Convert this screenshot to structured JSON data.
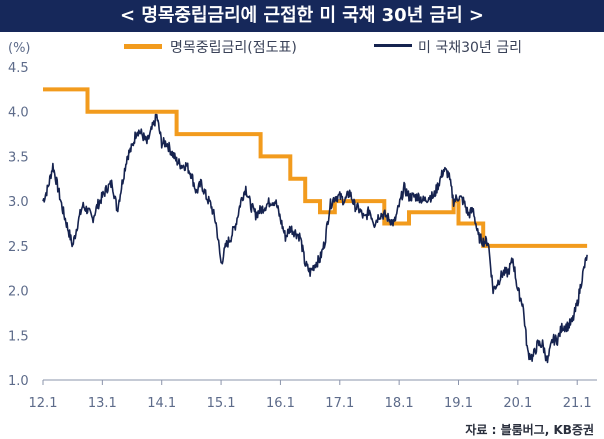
{
  "title": "< 명목중립금리에 근접한 미 국채 30년 금리 >",
  "source": "자료 : 블룸버그, KB증권",
  "colors": {
    "title_bg": "#16285a",
    "neutral": "#f29b1d",
    "yield": "#16234f",
    "axis_text": "#5d6b8a"
  },
  "chart_data": {
    "type": "line",
    "ylabel": "(%)",
    "ylim": [
      1.0,
      4.5
    ],
    "yticks": [
      "1.0",
      "1.5",
      "2.0",
      "2.5",
      "3.0",
      "3.5",
      "4.0",
      "4.5"
    ],
    "xlim": [
      "2012-01",
      "2021-05"
    ],
    "xticks": [
      "12.1",
      "13.1",
      "14.1",
      "15.1",
      "16.1",
      "17.1",
      "18.1",
      "19.1",
      "20.1",
      "21.1"
    ],
    "legend_position": "top",
    "series": [
      {
        "name": "명목중립금리(점도표)",
        "style": "step",
        "points": [
          [
            "2012-01",
            4.25
          ],
          [
            "2012-10",
            4.0
          ],
          [
            "2014-04",
            3.75
          ],
          [
            "2015-09",
            3.5
          ],
          [
            "2016-03",
            3.25
          ],
          [
            "2016-06",
            3.0
          ],
          [
            "2016-09",
            2.875
          ],
          [
            "2016-12",
            3.0
          ],
          [
            "2017-10",
            2.75
          ],
          [
            "2018-03",
            2.875
          ],
          [
            "2018-12",
            3.0
          ],
          [
            "2019-01",
            2.75
          ],
          [
            "2019-06",
            2.5
          ],
          [
            "2021-03",
            2.5
          ]
        ]
      },
      {
        "name": "미 국채30년 금리",
        "style": "line",
        "points": [
          [
            "2012-01",
            3.0
          ],
          [
            "2012-02",
            3.15
          ],
          [
            "2012-03",
            3.4
          ],
          [
            "2012-04",
            3.15
          ],
          [
            "2012-05",
            2.9
          ],
          [
            "2012-06",
            2.7
          ],
          [
            "2012-07",
            2.5
          ],
          [
            "2012-08",
            2.75
          ],
          [
            "2012-09",
            2.95
          ],
          [
            "2012-10",
            2.9
          ],
          [
            "2012-11",
            2.8
          ],
          [
            "2012-12",
            2.95
          ],
          [
            "2013-01",
            3.05
          ],
          [
            "2013-02",
            3.15
          ],
          [
            "2013-03",
            3.2
          ],
          [
            "2013-04",
            2.9
          ],
          [
            "2013-05",
            3.2
          ],
          [
            "2013-06",
            3.5
          ],
          [
            "2013-07",
            3.6
          ],
          [
            "2013-08",
            3.8
          ],
          [
            "2013-09",
            3.75
          ],
          [
            "2013-10",
            3.65
          ],
          [
            "2013-11",
            3.8
          ],
          [
            "2013-12",
            3.95
          ],
          [
            "2014-01",
            3.65
          ],
          [
            "2014-02",
            3.65
          ],
          [
            "2014-03",
            3.55
          ],
          [
            "2014-04",
            3.45
          ],
          [
            "2014-05",
            3.4
          ],
          [
            "2014-06",
            3.4
          ],
          [
            "2014-07",
            3.3
          ],
          [
            "2014-08",
            3.1
          ],
          [
            "2014-09",
            3.2
          ],
          [
            "2014-10",
            3.05
          ],
          [
            "2014-11",
            2.95
          ],
          [
            "2014-12",
            2.75
          ],
          [
            "2015-01",
            2.3
          ],
          [
            "2015-02",
            2.5
          ],
          [
            "2015-03",
            2.6
          ],
          [
            "2015-04",
            2.75
          ],
          [
            "2015-05",
            3.0
          ],
          [
            "2015-06",
            3.15
          ],
          [
            "2015-07",
            2.95
          ],
          [
            "2015-08",
            2.85
          ],
          [
            "2015-09",
            2.9
          ],
          [
            "2015-10",
            2.95
          ],
          [
            "2015-11",
            3.0
          ],
          [
            "2015-12",
            3.0
          ],
          [
            "2016-01",
            2.8
          ],
          [
            "2016-02",
            2.6
          ],
          [
            "2016-03",
            2.7
          ],
          [
            "2016-04",
            2.65
          ],
          [
            "2016-05",
            2.6
          ],
          [
            "2016-06",
            2.3
          ],
          [
            "2016-07",
            2.2
          ],
          [
            "2016-08",
            2.3
          ],
          [
            "2016-09",
            2.35
          ],
          [
            "2016-10",
            2.55
          ],
          [
            "2016-11",
            2.95
          ],
          [
            "2016-12",
            3.05
          ],
          [
            "2017-01",
            3.05
          ],
          [
            "2017-02",
            3.0
          ],
          [
            "2017-03",
            3.1
          ],
          [
            "2017-04",
            2.95
          ],
          [
            "2017-05",
            2.9
          ],
          [
            "2017-06",
            2.8
          ],
          [
            "2017-07",
            2.9
          ],
          [
            "2017-08",
            2.75
          ],
          [
            "2017-09",
            2.85
          ],
          [
            "2017-10",
            2.85
          ],
          [
            "2017-11",
            2.8
          ],
          [
            "2017-12",
            2.75
          ],
          [
            "2018-01",
            2.95
          ],
          [
            "2018-02",
            3.15
          ],
          [
            "2018-03",
            3.05
          ],
          [
            "2018-04",
            3.05
          ],
          [
            "2018-05",
            3.05
          ],
          [
            "2018-06",
            3.0
          ],
          [
            "2018-07",
            3.05
          ],
          [
            "2018-08",
            3.05
          ],
          [
            "2018-09",
            3.2
          ],
          [
            "2018-10",
            3.35
          ],
          [
            "2018-11",
            3.3
          ],
          [
            "2018-12",
            3.0
          ],
          [
            "2019-01",
            3.05
          ],
          [
            "2019-02",
            3.0
          ],
          [
            "2019-03",
            2.85
          ],
          [
            "2019-04",
            2.9
          ],
          [
            "2019-05",
            2.6
          ],
          [
            "2019-06",
            2.55
          ],
          [
            "2019-07",
            2.55
          ],
          [
            "2019-08",
            2.0
          ],
          [
            "2019-09",
            2.1
          ],
          [
            "2019-10",
            2.2
          ],
          [
            "2019-11",
            2.2
          ],
          [
            "2019-12",
            2.35
          ],
          [
            "2020-01",
            2.0
          ],
          [
            "2020-02",
            1.85
          ],
          [
            "2020-03",
            1.3
          ],
          [
            "2020-04",
            1.25
          ],
          [
            "2020-05",
            1.4
          ],
          [
            "2020-06",
            1.4
          ],
          [
            "2020-07",
            1.2
          ],
          [
            "2020-08",
            1.45
          ],
          [
            "2020-09",
            1.45
          ],
          [
            "2020-10",
            1.6
          ],
          [
            "2020-11",
            1.6
          ],
          [
            "2020-12",
            1.65
          ],
          [
            "2021-01",
            1.85
          ],
          [
            "2021-02",
            2.15
          ],
          [
            "2021-03",
            2.4
          ]
        ]
      }
    ]
  }
}
